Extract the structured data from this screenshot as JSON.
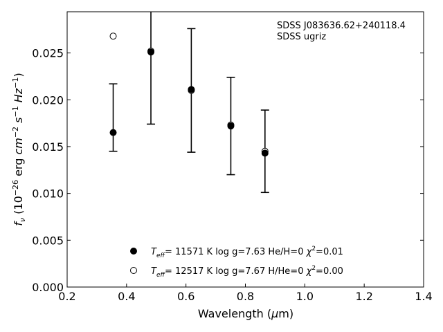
{
  "chart_data": {
    "type": "scatter",
    "annotation": [
      "SDSS J083636.62+240118.4",
      "SDSS ugriz"
    ],
    "xlabel": "Wavelength (μm)",
    "ylabel": "f_ν (10^-26 erg cm^-2 s^-1 Hz^-1)",
    "xlim": [
      0.2,
      1.4
    ],
    "ylim": [
      0.0,
      0.0294
    ],
    "xticks": [
      "0.2",
      "0.4",
      "0.6",
      "0.8",
      "1.0",
      "1.2",
      "1.4"
    ],
    "yticks": [
      "0.000",
      "0.005",
      "0.010",
      "0.015",
      "0.020",
      "0.025"
    ],
    "grid": false,
    "legend_position": "bottom-center",
    "observed": {
      "bands": [
        "u",
        "g",
        "r",
        "i",
        "z"
      ],
      "x": [
        0.355,
        0.482,
        0.618,
        0.751,
        0.866
      ],
      "y": [
        0.0181,
        0.0246,
        0.021,
        0.0172,
        0.0145
      ],
      "yerr": [
        0.0036,
        0.0072,
        0.0066,
        0.0052,
        0.0044
      ]
    },
    "series": [
      {
        "marker": "filled-circle",
        "legend": {
          "teff": "11571 K",
          "logg": "log g=7.63",
          "comp": "He/H=0",
          "chi2": "=0.01"
        },
        "x": [
          0.355,
          0.482,
          0.618,
          0.751,
          0.866
        ],
        "y": [
          0.0165,
          0.0251,
          0.0211,
          0.0172,
          0.0143
        ]
      },
      {
        "marker": "open-circle",
        "legend": {
          "teff": "12517 K",
          "logg": "log g=7.67",
          "comp": "H/He=0",
          "chi2": "=0.00"
        },
        "x": [
          0.355,
          0.482,
          0.618,
          0.751,
          0.866
        ],
        "y": [
          0.0268,
          0.0252,
          0.021,
          0.0173,
          0.0145
        ]
      }
    ]
  }
}
